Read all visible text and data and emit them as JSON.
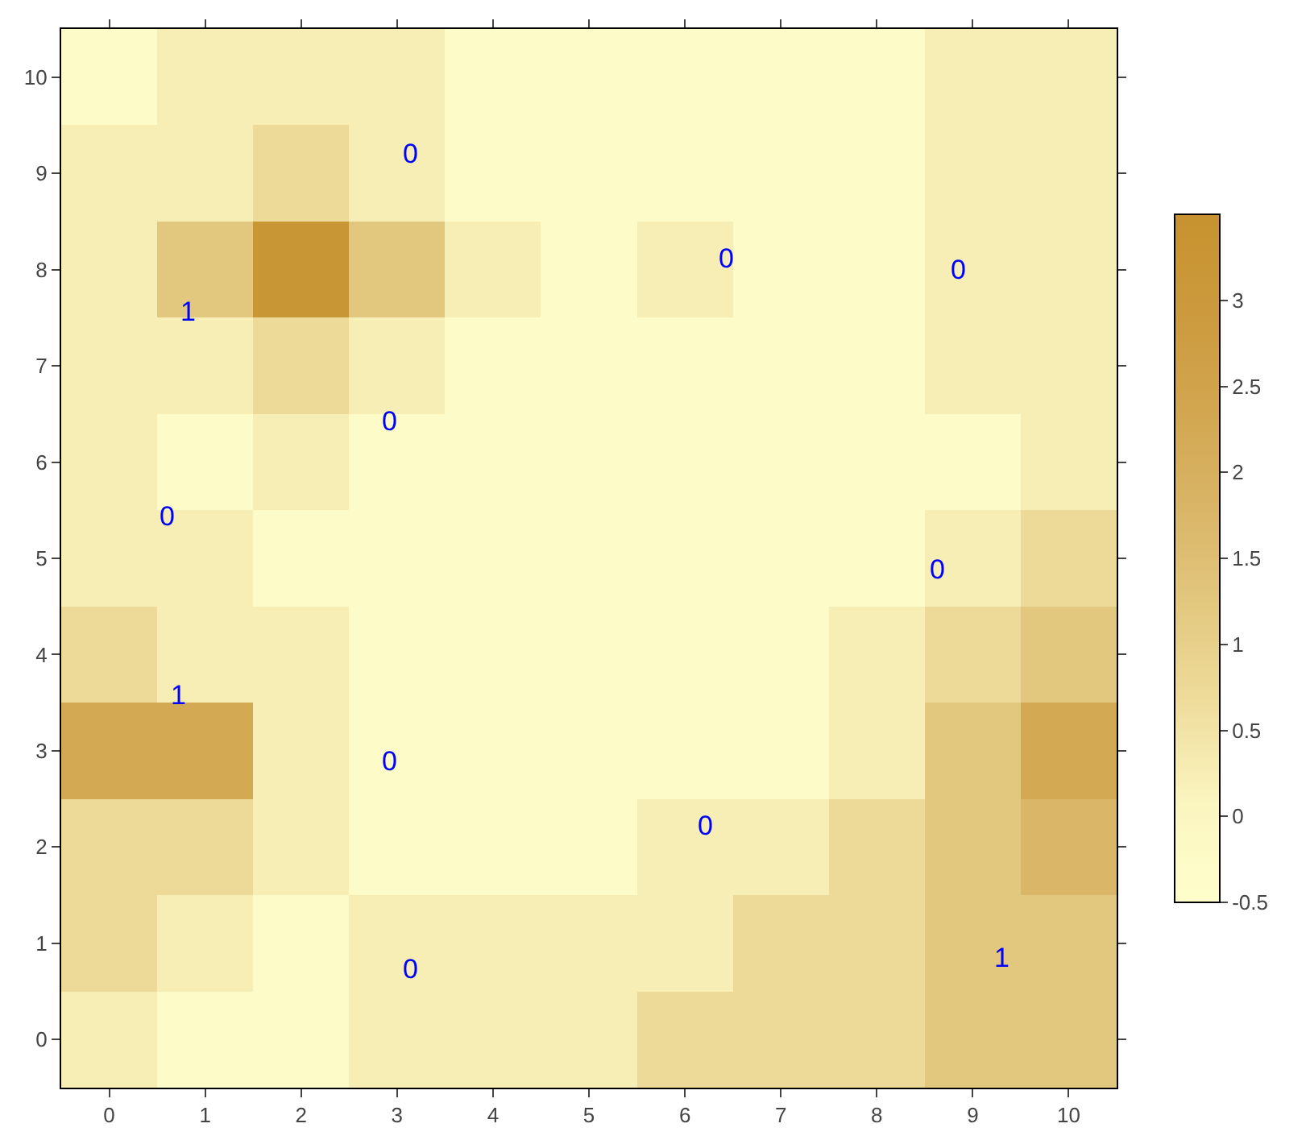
{
  "chart_data": {
    "type": "heatmap",
    "categories": [
      "0",
      "1",
      "2",
      "3",
      "4",
      "5",
      "6",
      "7",
      "8",
      "9",
      "10"
    ],
    "y_categories": [
      "10",
      "9",
      "8",
      "7",
      "6",
      "5",
      "4",
      "3",
      "2",
      "1",
      "0"
    ],
    "cells": [
      [
        -0.25,
        0.25,
        0.25,
        0.25,
        -0.25,
        -0.25,
        -0.25,
        -0.25,
        -0.25,
        0.25,
        0.25
      ],
      [
        0.25,
        0.25,
        0.75,
        0.25,
        -0.25,
        -0.25,
        -0.25,
        -0.25,
        -0.25,
        0.25,
        0.25
      ],
      [
        0.25,
        1.25,
        3.25,
        1.25,
        0.25,
        -0.25,
        0.25,
        -0.25,
        -0.25,
        0.25,
        0.25
      ],
      [
        0.25,
        0.25,
        0.75,
        0.25,
        -0.25,
        -0.25,
        -0.25,
        -0.25,
        -0.25,
        0.25,
        0.25
      ],
      [
        0.25,
        -0.25,
        0.25,
        -0.25,
        -0.25,
        -0.25,
        -0.25,
        -0.25,
        -0.25,
        -0.25,
        0.25
      ],
      [
        0.25,
        0.25,
        -0.25,
        -0.25,
        -0.25,
        -0.25,
        -0.25,
        -0.25,
        -0.25,
        0.25,
        0.75
      ],
      [
        0.75,
        0.25,
        0.25,
        -0.25,
        -0.25,
        -0.25,
        -0.25,
        -0.25,
        0.25,
        0.75,
        1.25
      ],
      [
        2.25,
        2.25,
        0.25,
        -0.25,
        -0.25,
        -0.25,
        -0.25,
        -0.25,
        0.25,
        1.25,
        2.25
      ],
      [
        0.75,
        0.75,
        0.25,
        -0.25,
        -0.25,
        -0.25,
        0.25,
        0.25,
        0.75,
        1.25,
        1.75
      ],
      [
        0.75,
        0.25,
        -0.25,
        0.25,
        0.25,
        0.25,
        0.25,
        0.75,
        0.75,
        1.25,
        1.25
      ],
      [
        0.25,
        -0.25,
        -0.25,
        0.25,
        0.25,
        0.25,
        0.75,
        0.75,
        0.75,
        1.25,
        1.25
      ]
    ],
    "clim": [
      -0.5,
      3.5
    ],
    "cticks": [
      -0.5,
      0,
      0.5,
      1,
      1.5,
      2,
      2.5,
      3
    ],
    "annotations": [
      "0",
      "0",
      "0",
      "0",
      "0",
      "0",
      "0",
      "0",
      "0",
      "1",
      "1",
      "1"
    ]
  }
}
